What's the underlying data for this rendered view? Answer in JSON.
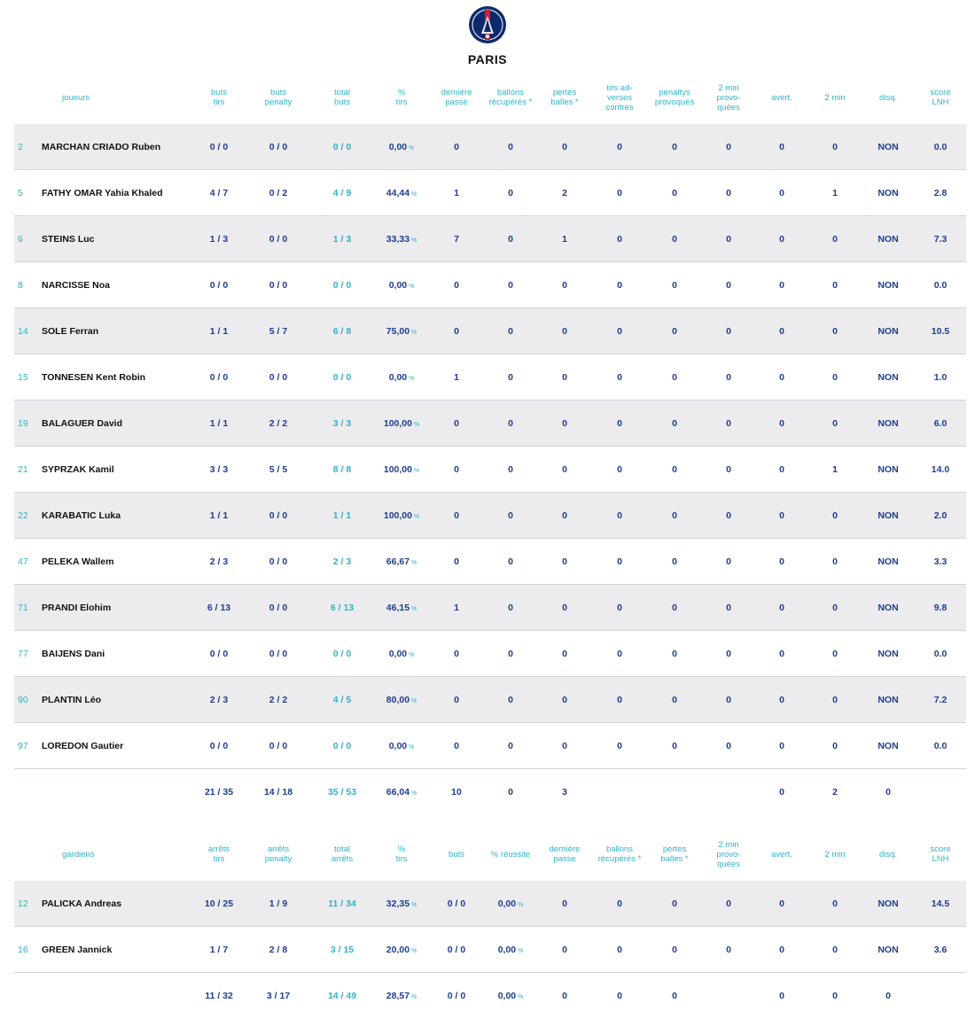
{
  "team": {
    "name": "PARIS",
    "logo_icon": "psg-crest-icon"
  },
  "players": {
    "headers": [
      "joueurs",
      "buts\ntirs",
      "buts\npenalty",
      "total\nbuts",
      "%\ntirs",
      "dernière\npasse",
      "ballons\nrécupérés *",
      "pertes\nballes *",
      "tirs ad-\nverses\ncontrés",
      "penaltys\nprovoqués",
      "2 min\nprovo-\nquées",
      "avert.",
      "2 min",
      "disq.",
      "score\nLNH"
    ],
    "rows": [
      {
        "num": "2",
        "name": "MARCHAN CRIADO Ruben",
        "cells": [
          "0 / 0",
          "0 / 0",
          "0 / 0",
          "0,00",
          "0",
          "0",
          "0",
          "0",
          "0",
          "0",
          "0",
          "0",
          "NON",
          "0.0"
        ]
      },
      {
        "num": "5",
        "name": "FATHY OMAR Yahia Khaled",
        "cells": [
          "4 / 7",
          "0 / 2",
          "4 / 9",
          "44,44",
          "1",
          "0",
          "2",
          "0",
          "0",
          "0",
          "0",
          "1",
          "NON",
          "2.8"
        ]
      },
      {
        "num": "6",
        "name": "STEINS Luc",
        "cells": [
          "1 / 3",
          "0 / 0",
          "1 / 3",
          "33,33",
          "7",
          "0",
          "1",
          "0",
          "0",
          "0",
          "0",
          "0",
          "NON",
          "7.3"
        ]
      },
      {
        "num": "8",
        "name": "NARCISSE Noa",
        "cells": [
          "0 / 0",
          "0 / 0",
          "0 / 0",
          "0,00",
          "0",
          "0",
          "0",
          "0",
          "0",
          "0",
          "0",
          "0",
          "NON",
          "0.0"
        ]
      },
      {
        "num": "14",
        "name": "SOLE Ferran",
        "cells": [
          "1 / 1",
          "5 / 7",
          "6 / 8",
          "75,00",
          "0",
          "0",
          "0",
          "0",
          "0",
          "0",
          "0",
          "0",
          "NON",
          "10.5"
        ]
      },
      {
        "num": "15",
        "name": "TONNESEN Kent Robin",
        "cells": [
          "0 / 0",
          "0 / 0",
          "0 / 0",
          "0,00",
          "1",
          "0",
          "0",
          "0",
          "0",
          "0",
          "0",
          "0",
          "NON",
          "1.0"
        ]
      },
      {
        "num": "19",
        "name": "BALAGUER David",
        "cells": [
          "1 / 1",
          "2 / 2",
          "3 / 3",
          "100,00",
          "0",
          "0",
          "0",
          "0",
          "0",
          "0",
          "0",
          "0",
          "NON",
          "6.0"
        ]
      },
      {
        "num": "21",
        "name": "SYPRZAK Kamil",
        "cells": [
          "3 / 3",
          "5 / 5",
          "8 / 8",
          "100,00",
          "0",
          "0",
          "0",
          "0",
          "0",
          "0",
          "0",
          "1",
          "NON",
          "14.0"
        ]
      },
      {
        "num": "22",
        "name": "KARABATIC Luka",
        "cells": [
          "1 / 1",
          "0 / 0",
          "1 / 1",
          "100,00",
          "0",
          "0",
          "0",
          "0",
          "0",
          "0",
          "0",
          "0",
          "NON",
          "2.0"
        ]
      },
      {
        "num": "47",
        "name": "PELEKA Wallem",
        "cells": [
          "2 / 3",
          "0 / 0",
          "2 / 3",
          "66,67",
          "0",
          "0",
          "0",
          "0",
          "0",
          "0",
          "0",
          "0",
          "NON",
          "3.3"
        ]
      },
      {
        "num": "71",
        "name": "PRANDI Elohim",
        "cells": [
          "6 / 13",
          "0 / 0",
          "6 / 13",
          "46,15",
          "1",
          "0",
          "0",
          "0",
          "0",
          "0",
          "0",
          "0",
          "NON",
          "9.8"
        ]
      },
      {
        "num": "77",
        "name": "BAIJENS Dani",
        "cells": [
          "0 / 0",
          "0 / 0",
          "0 / 0",
          "0,00",
          "0",
          "0",
          "0",
          "0",
          "0",
          "0",
          "0",
          "0",
          "NON",
          "0.0"
        ]
      },
      {
        "num": "90",
        "name": "PLANTIN Léo",
        "cells": [
          "2 / 3",
          "2 / 2",
          "4 / 5",
          "80,00",
          "0",
          "0",
          "0",
          "0",
          "0",
          "0",
          "0",
          "0",
          "NON",
          "7.2"
        ]
      },
      {
        "num": "97",
        "name": "LOREDON Gautier",
        "cells": [
          "0 / 0",
          "0 / 0",
          "0 / 0",
          "0,00",
          "0",
          "0",
          "0",
          "0",
          "0",
          "0",
          "0",
          "0",
          "NON",
          "0.0"
        ]
      }
    ],
    "totals": [
      "21 / 35",
      "14 / 18",
      "35 / 53",
      "66,04",
      "10",
      "0",
      "3",
      "",
      "",
      "",
      "0",
      "2",
      "0",
      ""
    ]
  },
  "goalkeepers": {
    "headers": [
      "gardiens",
      "arrêts\ntirs",
      "arrêts\npenalty",
      "total\narrêts",
      "%\ntirs",
      "buts",
      "% réussite",
      "dernière\npasse",
      "ballons\nrécupérés *",
      "pertes\nballes *",
      "2 min\nprovo-\nquées",
      "avert.",
      "2 min",
      "disq.",
      "score\nLNH"
    ],
    "rows": [
      {
        "num": "12",
        "name": "PALICKA Andreas",
        "cells": [
          "10 / 25",
          "1 / 9",
          "11 / 34",
          "32,35",
          "0 / 0",
          "0,00",
          "0",
          "0",
          "0",
          "0",
          "0",
          "0",
          "NON",
          "14.5"
        ]
      },
      {
        "num": "16",
        "name": "GREEN Jannick",
        "cells": [
          "1 / 7",
          "2 / 8",
          "3 / 15",
          "20,00",
          "0 / 0",
          "0,00",
          "0",
          "0",
          "0",
          "0",
          "0",
          "0",
          "NON",
          "3.6"
        ]
      }
    ],
    "totals": [
      "11 / 32",
      "3 / 17",
      "14 / 49",
      "28,57",
      "0 / 0",
      "0,00",
      "0",
      "0",
      "0",
      "",
      "0",
      "0",
      "0",
      ""
    ]
  },
  "percent_suffix": "%"
}
